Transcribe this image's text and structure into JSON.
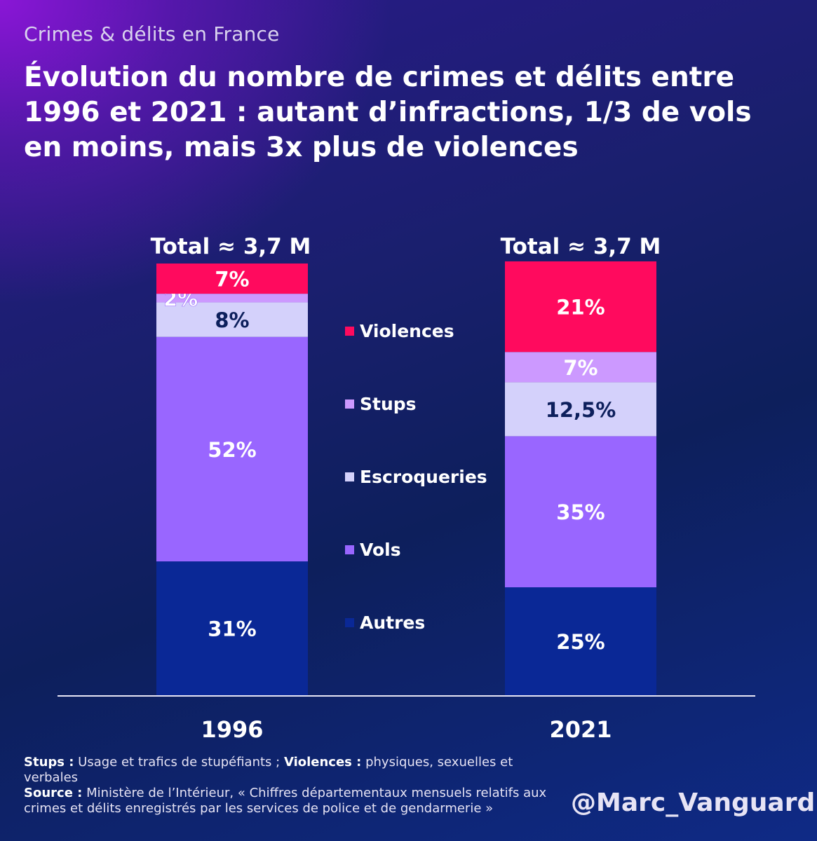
{
  "kicker": "Crimes & délits en France",
  "title": "Évolution du nombre de crimes et délits entre 1996 et 2021 : autant d’infractions, 1/3 de vols en moins, mais 3x plus de violences",
  "colors": {
    "Violences": "#ff0a5e",
    "Stups": "#cc99ff",
    "Escroqueries": "#d4d1fb",
    "Vols": "#9966ff",
    "Autres": "#0a2896"
  },
  "chart_data": {
    "type": "bar",
    "stacked": true,
    "categories": [
      "1996",
      "2021"
    ],
    "totals": [
      "Total ≈ 3,7 M",
      "Total ≈ 3,7 M"
    ],
    "series": [
      {
        "name": "Autres",
        "values": [
          31,
          25
        ],
        "labels": [
          "31%",
          "25%"
        ]
      },
      {
        "name": "Vols",
        "values": [
          52,
          35
        ],
        "labels": [
          "52%",
          "35%"
        ]
      },
      {
        "name": "Escroqueries",
        "values": [
          8,
          12.5
        ],
        "labels": [
          "8%",
          "12,5%"
        ]
      },
      {
        "name": "Stups",
        "values": [
          2,
          7
        ],
        "labels": [
          "2%",
          "7%"
        ]
      },
      {
        "name": "Violences",
        "values": [
          7,
          21
        ],
        "labels": [
          "7%",
          "21%"
        ]
      }
    ],
    "legend": [
      "Violences",
      "Stups",
      "Escroqueries",
      "Vols",
      "Autres"
    ],
    "ylim": [
      0,
      100
    ],
    "grid": false,
    "legend_position": "center"
  },
  "notes": {
    "stups_label": "Stups :",
    "stups_text": " Usage et trafics de stupéfiants ; ",
    "violences_label": "Violences :",
    "violences_text": " physiques, sexuelles et verbales",
    "source_label": "Source :",
    "source_text": " Ministère de l’Intérieur, « Chiffres départementaux mensuels relatifs aux crimes et délits enregistrés par les services de police et de gendarmerie »"
  },
  "handle": "@Marc_Vanguard"
}
